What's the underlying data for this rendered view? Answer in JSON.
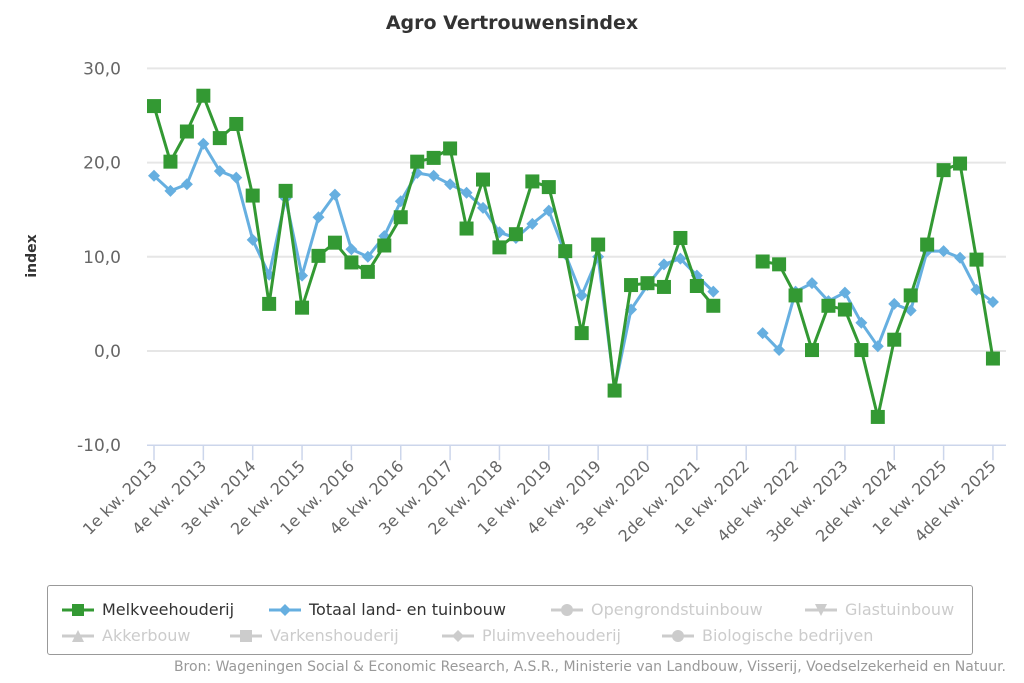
{
  "chart_data": {
    "type": "line",
    "title": "Agro Vertrouwensindex",
    "xlabel": "",
    "ylabel": "index",
    "ylim": [
      -10,
      30
    ],
    "yticks": [
      "30,0",
      "20,0",
      "10,0",
      "0,0",
      "-10,0"
    ],
    "ytick_values": [
      30,
      20,
      10,
      0,
      -10
    ],
    "grid": true,
    "legend_position": "bottom",
    "x_tick_labels": [
      "1e kw. 2013",
      "4e kw. 2013",
      "3e kw. 2014",
      "2e kw. 2015",
      "1e kw. 2016",
      "4e kw. 2016",
      "3e kw. 2017",
      "2e kw. 2018",
      "1e kw. 2019",
      "4e kw. 2019",
      "3e kw. 2020",
      "2de kw. 2021",
      "1e kw. 2022",
      "4de kw. 2022",
      "3de kw. 2023",
      "2de kw. 2024",
      "1e kw. 2025",
      "4de kw. 2025"
    ],
    "x_tick_every": 3,
    "n_points": 52,
    "series": [
      {
        "name": "Melkveehouderij",
        "color": "#339933",
        "marker": "square",
        "visible": true,
        "values": [
          26.0,
          20.1,
          23.3,
          27.1,
          22.6,
          24.1,
          16.5,
          5.0,
          17.0,
          4.6,
          10.1,
          11.5,
          9.4,
          8.4,
          11.2,
          14.2,
          20.1,
          20.5,
          21.5,
          13.0,
          18.2,
          11.0,
          12.4,
          18.0,
          17.4,
          10.6,
          1.9,
          11.3,
          -4.2,
          7.0,
          7.2,
          6.8,
          12.0,
          6.9,
          4.8,
          null,
          null,
          9.5,
          9.2,
          5.9,
          0.1,
          4.8,
          4.4,
          0.1,
          -7.0,
          1.2,
          5.9,
          11.3,
          19.2,
          19.9,
          9.7,
          -0.8
        ]
      },
      {
        "name": "Totaal land- en tuinbouw",
        "color": "#66afe0",
        "marker": "diamond",
        "visible": true,
        "values": [
          18.6,
          17.0,
          17.7,
          22.0,
          19.1,
          18.4,
          11.8,
          8.1,
          16.2,
          8.0,
          14.2,
          16.6,
          10.8,
          10.0,
          12.2,
          15.9,
          18.9,
          18.6,
          17.7,
          16.8,
          15.2,
          12.6,
          12.0,
          13.5,
          14.9,
          10.3,
          5.9,
          10.0,
          -4.0,
          4.4,
          7.0,
          9.2,
          9.8,
          8.0,
          6.3,
          null,
          null,
          1.9,
          0.1,
          6.3,
          7.2,
          5.3,
          6.2,
          3.0,
          0.5,
          5.0,
          4.3,
          10.6,
          10.6,
          9.9,
          6.5,
          5.2
        ]
      },
      {
        "name": "Opengrondstuinbouw",
        "marker": "circle",
        "visible": false
      },
      {
        "name": "Glastuinbouw",
        "marker": "triangle-down",
        "visible": false
      },
      {
        "name": "Akkerbouw",
        "marker": "triangle",
        "visible": false
      },
      {
        "name": "Varkenshouderij",
        "marker": "square",
        "visible": false
      },
      {
        "name": "Pluimveehouderij",
        "marker": "diamond",
        "visible": false
      },
      {
        "name": "Biologische bedrijven",
        "marker": "circle",
        "visible": false
      }
    ]
  },
  "legend": {
    "items": [
      {
        "label": "Melkveehouderij",
        "marker": "square",
        "color": "#339933",
        "active": true
      },
      {
        "label": "Totaal land- en tuinbouw",
        "marker": "diamond",
        "color": "#66afe0",
        "active": true
      },
      {
        "label": "Opengrondstuinbouw",
        "marker": "circle",
        "color": "#cccccc",
        "active": false
      },
      {
        "label": "Glastuinbouw",
        "marker": "triangle-down",
        "color": "#cccccc",
        "active": false
      },
      {
        "label": "Akkerbouw",
        "marker": "triangle",
        "color": "#cccccc",
        "active": false
      },
      {
        "label": "Varkenshouderij",
        "marker": "square",
        "color": "#cccccc",
        "active": false
      },
      {
        "label": "Pluimveehouderij",
        "marker": "diamond",
        "color": "#cccccc",
        "active": false
      },
      {
        "label": "Biologische bedrijven",
        "marker": "circle",
        "color": "#cccccc",
        "active": false
      }
    ]
  },
  "source": "Bron: Wageningen Social & Economic Research, A.S.R., Ministerie van Landbouw, Visserij, Voedselzekerheid en Natuur."
}
